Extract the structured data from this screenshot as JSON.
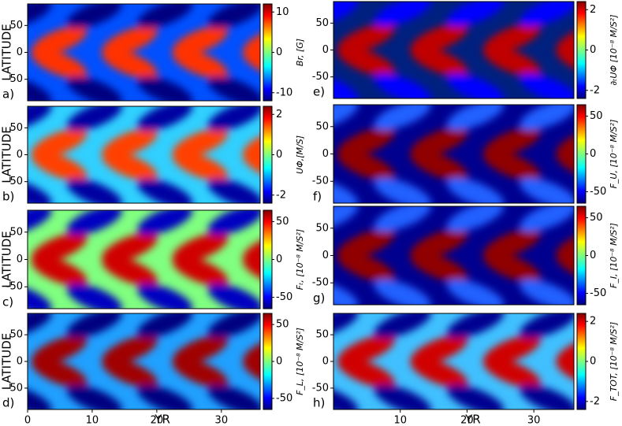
{
  "chart_data": [
    {
      "type": "heatmap",
      "label": "a)",
      "ylabel": "LATITUDE",
      "colorbar_label": "Br, [G]",
      "xlim": [
        0,
        36
      ],
      "ylim": [
        -90,
        90
      ],
      "yticks": [
        -50,
        0,
        50
      ],
      "clim": [
        -12,
        12
      ],
      "cticks": [
        -10,
        0,
        10
      ]
    },
    {
      "type": "heatmap",
      "label": "b)",
      "ylabel": "LATITUDE",
      "colorbar_label": "UΦ,[M/S]",
      "xlim": [
        0,
        36
      ],
      "ylim": [
        -90,
        90
      ],
      "yticks": [
        -50,
        0,
        50
      ],
      "clim": [
        -2.4,
        2.4
      ],
      "cticks": [
        -2,
        0,
        2
      ]
    },
    {
      "type": "heatmap",
      "label": "c)",
      "ylabel": "LATITUDE",
      "colorbar_label": "Fₜ, [10⁻⁸ M/S²]",
      "xlim": [
        0,
        36
      ],
      "ylim": [
        -90,
        90
      ],
      "yticks": [
        -50,
        0,
        50
      ],
      "clim": [
        -65,
        65
      ],
      "cticks": [
        -50,
        0,
        50
      ]
    },
    {
      "type": "heatmap",
      "label": "d)",
      "ylabel": "LATITUDE",
      "xlabel": "YR",
      "colorbar_label": "F_L, [10⁻⁸ M/S²]",
      "xlim": [
        0,
        36
      ],
      "ylim": [
        -90,
        90
      ],
      "yticks": [
        -50,
        0,
        50
      ],
      "xticks": [
        0,
        10,
        20,
        30
      ],
      "clim": [
        -65,
        65
      ],
      "cticks": [
        -50,
        0,
        50
      ]
    },
    {
      "type": "heatmap",
      "label": "e)",
      "colorbar_label": "∂ₜUΦ [10⁻⁸ M/S²]",
      "xlim": [
        0,
        36
      ],
      "ylim": [
        -90,
        90
      ],
      "yticks": [
        -50,
        0,
        50
      ],
      "clim": [
        -2.4,
        2.4
      ],
      "cticks": [
        -2,
        0,
        2
      ]
    },
    {
      "type": "heatmap",
      "label": "f)",
      "colorbar_label": "F_U, [10⁻⁸ M/S²]",
      "xlim": [
        0,
        36
      ],
      "ylim": [
        -90,
        90
      ],
      "yticks": [
        -50,
        0,
        50
      ],
      "clim": [
        -65,
        65
      ],
      "cticks": [
        -50,
        0,
        50
      ]
    },
    {
      "type": "heatmap",
      "label": "g)",
      "colorbar_label": "F_I, [10⁻⁸ M/S²]",
      "xlim": [
        0,
        36
      ],
      "ylim": [
        -90,
        90
      ],
      "yticks": [
        -50,
        0,
        50
      ],
      "clim": [
        -65,
        65
      ],
      "cticks": [
        -50,
        0,
        50
      ]
    },
    {
      "type": "heatmap",
      "label": "h)",
      "xlabel": "YR",
      "colorbar_label": "F_TOT, [10⁻⁸ M/S²]",
      "xlim": [
        0,
        36
      ],
      "ylim": [
        -90,
        90
      ],
      "yticks": [
        -50,
        0,
        50
      ],
      "xticks": [
        10,
        20,
        30
      ],
      "clim": [
        -2.4,
        2.4
      ],
      "cticks": [
        -2,
        0,
        2
      ]
    }
  ]
}
